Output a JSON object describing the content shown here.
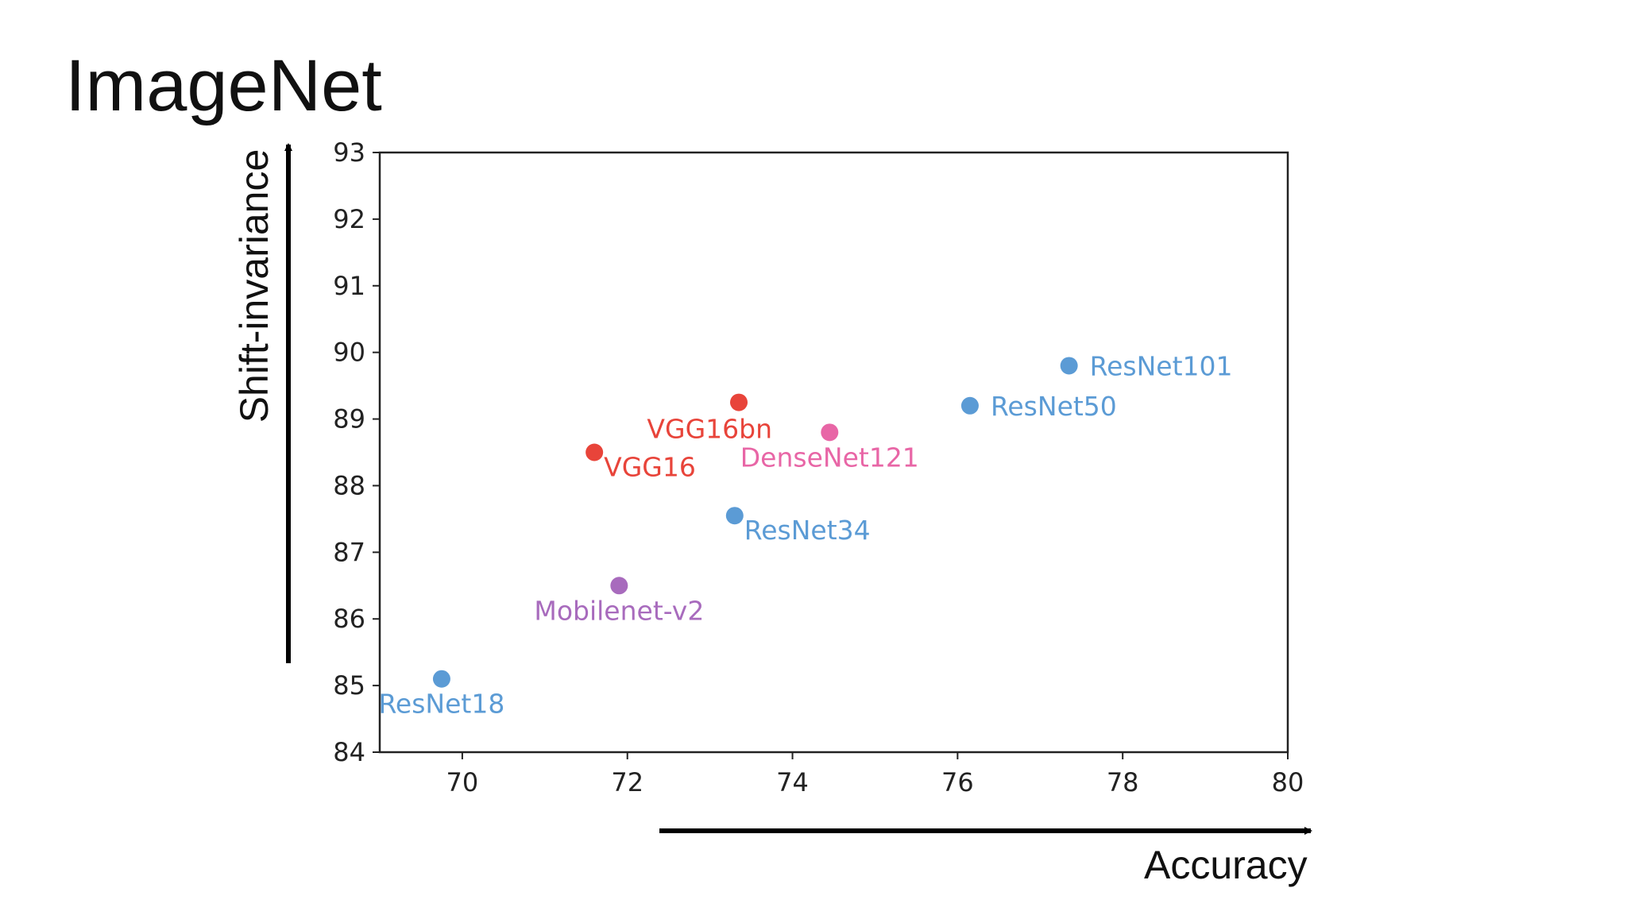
{
  "header": {
    "title": "ImageNet"
  },
  "chart_data": {
    "type": "scatter",
    "title": "",
    "xlabel": "Accuracy",
    "ylabel": "Shift-invariance",
    "xlim": [
      69,
      80
    ],
    "ylim": [
      84,
      93
    ],
    "x_ticks": [
      70,
      72,
      74,
      76,
      78,
      80
    ],
    "y_ticks": [
      84,
      85,
      86,
      87,
      88,
      89,
      90,
      91,
      92,
      93
    ],
    "grid": false,
    "legend": "none",
    "points": [
      {
        "label": "ResNet18",
        "x": 69.75,
        "y": 85.1,
        "color": "#5b9bd5",
        "label_pos": "below"
      },
      {
        "label": "VGG16",
        "x": 71.6,
        "y": 88.5,
        "color": "#e8443a",
        "label_pos": "below-right"
      },
      {
        "label": "VGG16bn",
        "x": 73.35,
        "y": 89.25,
        "color": "#e8443a",
        "label_pos": "below-left"
      },
      {
        "label": "Mobilenet-v2",
        "x": 71.9,
        "y": 86.5,
        "color": "#a86bbd",
        "label_pos": "below"
      },
      {
        "label": "ResNet34",
        "x": 73.3,
        "y": 87.55,
        "color": "#5b9bd5",
        "label_pos": "below-right"
      },
      {
        "label": "DenseNet121",
        "x": 74.45,
        "y": 88.8,
        "color": "#e866a6",
        "label_pos": "below"
      },
      {
        "label": "ResNet50",
        "x": 76.15,
        "y": 89.2,
        "color": "#5b9bd5",
        "label_pos": "right"
      },
      {
        "label": "ResNet101",
        "x": 77.35,
        "y": 89.8,
        "color": "#5b9bd5",
        "label_pos": "right"
      }
    ]
  }
}
